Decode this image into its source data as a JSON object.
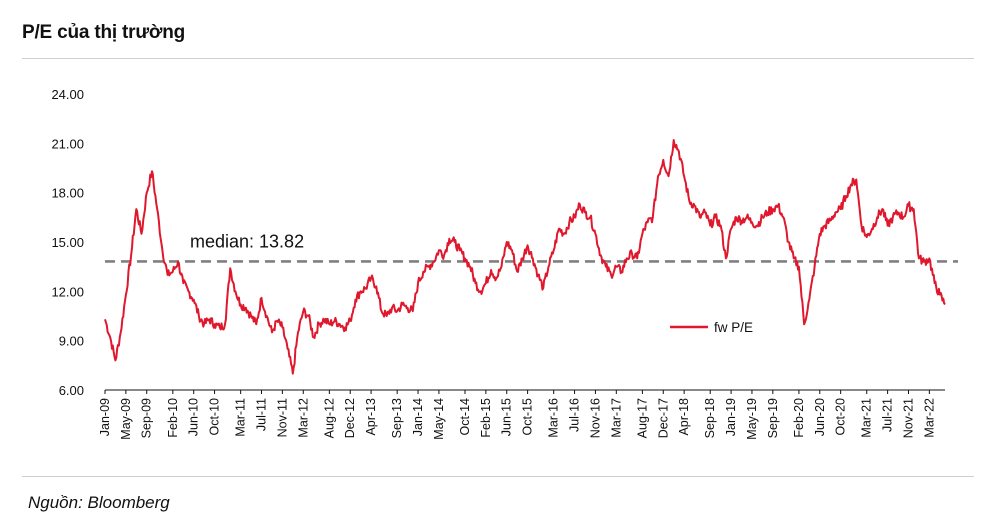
{
  "title": "P/E của thị trường",
  "source": "Nguồn: Bloomberg",
  "colors": {
    "series": "#e0182d",
    "median": "#808080",
    "axis": "#111111"
  },
  "chart_data": {
    "type": "line",
    "ylim": [
      6.0,
      24.0
    ],
    "yticks": [
      "24.00",
      "21.00",
      "18.00",
      "15.00",
      "12.00",
      "9.00",
      "6.00"
    ],
    "xlim": [
      "Jan-09",
      "Jun-22"
    ],
    "xticks": [
      "Jan-09",
      "May-09",
      "Sep-09",
      "Feb-10",
      "Jun-10",
      "Oct-10",
      "Mar-11",
      "Jul-11",
      "Nov-11",
      "Mar-12",
      "Aug-12",
      "Dec-12",
      "Apr-13",
      "Sep-13",
      "Jan-14",
      "May-14",
      "Oct-14",
      "Feb-15",
      "Jun-15",
      "Oct-15",
      "Mar-16",
      "Jul-16",
      "Nov-16",
      "Mar-17",
      "Aug-17",
      "Dec-17",
      "Apr-18",
      "Sep-18",
      "Jan-19",
      "May-19",
      "Sep-19",
      "Feb-20",
      "Jun-20",
      "Oct-20",
      "Mar-21",
      "Jul-21",
      "Nov-21",
      "Mar-22"
    ],
    "median": {
      "value": 13.82,
      "label": "median: 13.82"
    },
    "legend": {
      "label": "fw P/E",
      "position": "center-right"
    },
    "series": [
      {
        "name": "fw P/E",
        "points": [
          [
            "Jan-09",
            10.3
          ],
          [
            "Feb-09",
            9.2
          ],
          [
            "Mar-09",
            7.8
          ],
          [
            "Apr-09",
            9.5
          ],
          [
            "May-09",
            11.8
          ],
          [
            "Jun-09",
            14.2
          ],
          [
            "Jul-09",
            17.0
          ],
          [
            "Aug-09",
            15.5
          ],
          [
            "Sep-09",
            18.0
          ],
          [
            "Oct-09",
            19.3
          ],
          [
            "Nov-09",
            17.0
          ],
          [
            "Dec-09",
            14.5
          ],
          [
            "Jan-10",
            13.0
          ],
          [
            "Feb-10",
            13.2
          ],
          [
            "Mar-10",
            13.8
          ],
          [
            "Apr-10",
            12.5
          ],
          [
            "May-10",
            12.0
          ],
          [
            "Jun-10",
            11.5
          ],
          [
            "Jul-10",
            10.5
          ],
          [
            "Aug-10",
            10.0
          ],
          [
            "Sep-10",
            10.3
          ],
          [
            "Oct-10",
            10.0
          ],
          [
            "Nov-10",
            9.8
          ],
          [
            "Dec-10",
            10.0
          ],
          [
            "Jan-11",
            13.4
          ],
          [
            "Feb-11",
            12.0
          ],
          [
            "Mar-11",
            11.2
          ],
          [
            "Apr-11",
            11.0
          ],
          [
            "May-11",
            10.5
          ],
          [
            "Jun-11",
            10.0
          ],
          [
            "Jul-11",
            11.6
          ],
          [
            "Aug-11",
            10.5
          ],
          [
            "Sep-11",
            9.5
          ],
          [
            "Oct-11",
            10.2
          ],
          [
            "Nov-11",
            9.8
          ],
          [
            "Dec-11",
            8.5
          ],
          [
            "Jan-12",
            7.0
          ],
          [
            "Feb-12",
            9.5
          ],
          [
            "Mar-12",
            10.8
          ],
          [
            "Apr-12",
            10.5
          ],
          [
            "May-12",
            9.2
          ],
          [
            "Jun-12",
            10.0
          ],
          [
            "Jul-12",
            10.3
          ],
          [
            "Aug-12",
            10.0
          ],
          [
            "Sep-12",
            10.2
          ],
          [
            "Oct-12",
            10.0
          ],
          [
            "Nov-12",
            9.8
          ],
          [
            "Dec-12",
            10.2
          ],
          [
            "Jan-13",
            11.5
          ],
          [
            "Feb-13",
            12.0
          ],
          [
            "Mar-13",
            12.2
          ],
          [
            "Apr-13",
            12.8
          ],
          [
            "May-13",
            12.3
          ],
          [
            "Jun-13",
            10.8
          ],
          [
            "Jul-13",
            10.5
          ],
          [
            "Aug-13",
            11.0
          ],
          [
            "Sep-13",
            10.8
          ],
          [
            "Oct-13",
            11.2
          ],
          [
            "Nov-13",
            11.0
          ],
          [
            "Dec-13",
            10.8
          ],
          [
            "Jan-14",
            12.5
          ],
          [
            "Feb-14",
            13.2
          ],
          [
            "Mar-14",
            13.5
          ],
          [
            "Apr-14",
            13.8
          ],
          [
            "May-14",
            14.5
          ],
          [
            "Jun-14",
            14.2
          ],
          [
            "Jul-14",
            15.2
          ],
          [
            "Aug-14",
            15.0
          ],
          [
            "Sep-14",
            14.5
          ],
          [
            "Oct-14",
            14.0
          ],
          [
            "Nov-14",
            13.5
          ],
          [
            "Dec-14",
            12.5
          ],
          [
            "Jan-15",
            12.0
          ],
          [
            "Feb-15",
            12.5
          ],
          [
            "Mar-15",
            13.3
          ],
          [
            "Apr-15",
            12.8
          ],
          [
            "May-15",
            13.5
          ],
          [
            "Jun-15",
            15.0
          ],
          [
            "Jul-15",
            14.5
          ],
          [
            "Aug-15",
            13.2
          ],
          [
            "Sep-15",
            14.0
          ],
          [
            "Oct-15",
            14.8
          ],
          [
            "Nov-15",
            14.0
          ],
          [
            "Dec-15",
            13.0
          ],
          [
            "Jan-16",
            12.2
          ],
          [
            "Feb-16",
            13.5
          ],
          [
            "Mar-16",
            14.5
          ],
          [
            "Apr-16",
            15.8
          ],
          [
            "May-16",
            15.5
          ],
          [
            "Jun-16",
            16.2
          ],
          [
            "Jul-16",
            16.5
          ],
          [
            "Aug-16",
            17.3
          ],
          [
            "Sep-16",
            16.8
          ],
          [
            "Oct-16",
            16.5
          ],
          [
            "Nov-16",
            15.5
          ],
          [
            "Dec-16",
            14.2
          ],
          [
            "Jan-17",
            13.5
          ],
          [
            "Feb-17",
            13.0
          ],
          [
            "Mar-17",
            13.5
          ],
          [
            "Apr-17",
            13.2
          ],
          [
            "May-17",
            14.0
          ],
          [
            "Jun-17",
            14.3
          ],
          [
            "Jul-17",
            14.0
          ],
          [
            "Aug-17",
            15.5
          ],
          [
            "Sep-17",
            16.2
          ],
          [
            "Oct-17",
            16.5
          ],
          [
            "Nov-17",
            19.0
          ],
          [
            "Dec-17",
            20.0
          ],
          [
            "Jan-18",
            19.0
          ],
          [
            "Feb-18",
            21.2
          ],
          [
            "Mar-18",
            20.5
          ],
          [
            "Apr-18",
            19.0
          ],
          [
            "May-18",
            17.5
          ],
          [
            "Jun-18",
            17.2
          ],
          [
            "Jul-18",
            16.5
          ],
          [
            "Aug-18",
            16.8
          ],
          [
            "Sep-18",
            16.0
          ],
          [
            "Oct-18",
            16.5
          ],
          [
            "Nov-18",
            16.0
          ],
          [
            "Dec-18",
            14.0
          ],
          [
            "Jan-19",
            15.8
          ],
          [
            "Feb-19",
            16.5
          ],
          [
            "Mar-19",
            16.3
          ],
          [
            "Apr-19",
            16.5
          ],
          [
            "May-19",
            16.2
          ],
          [
            "Jun-19",
            16.0
          ],
          [
            "Jul-19",
            16.5
          ],
          [
            "Aug-19",
            16.8
          ],
          [
            "Sep-19",
            17.0
          ],
          [
            "Oct-19",
            17.2
          ],
          [
            "Nov-19",
            16.5
          ],
          [
            "Dec-19",
            15.0
          ],
          [
            "Jan-20",
            14.0
          ],
          [
            "Feb-20",
            13.5
          ],
          [
            "Mar-20",
            10.0
          ],
          [
            "Apr-20",
            11.5
          ],
          [
            "May-20",
            13.5
          ],
          [
            "Jun-20",
            15.5
          ],
          [
            "Jul-20",
            16.0
          ],
          [
            "Aug-20",
            16.3
          ],
          [
            "Sep-20",
            16.8
          ],
          [
            "Oct-20",
            17.0
          ],
          [
            "Nov-20",
            17.8
          ],
          [
            "Dec-20",
            18.5
          ],
          [
            "Jan-21",
            18.8
          ],
          [
            "Feb-21",
            16.0
          ],
          [
            "Mar-21",
            15.3
          ],
          [
            "Apr-21",
            15.8
          ],
          [
            "May-21",
            16.5
          ],
          [
            "Jun-21",
            17.0
          ],
          [
            "Jul-21",
            16.0
          ],
          [
            "Aug-21",
            16.5
          ],
          [
            "Sep-21",
            16.8
          ],
          [
            "Oct-21",
            16.5
          ],
          [
            "Nov-21",
            17.2
          ],
          [
            "Dec-21",
            17.0
          ],
          [
            "Jan-22",
            14.0
          ],
          [
            "Feb-22",
            13.8
          ],
          [
            "Mar-22",
            14.0
          ],
          [
            "Apr-22",
            12.5
          ],
          [
            "May-22",
            11.8
          ],
          [
            "Jun-22",
            11.2
          ]
        ]
      }
    ]
  }
}
